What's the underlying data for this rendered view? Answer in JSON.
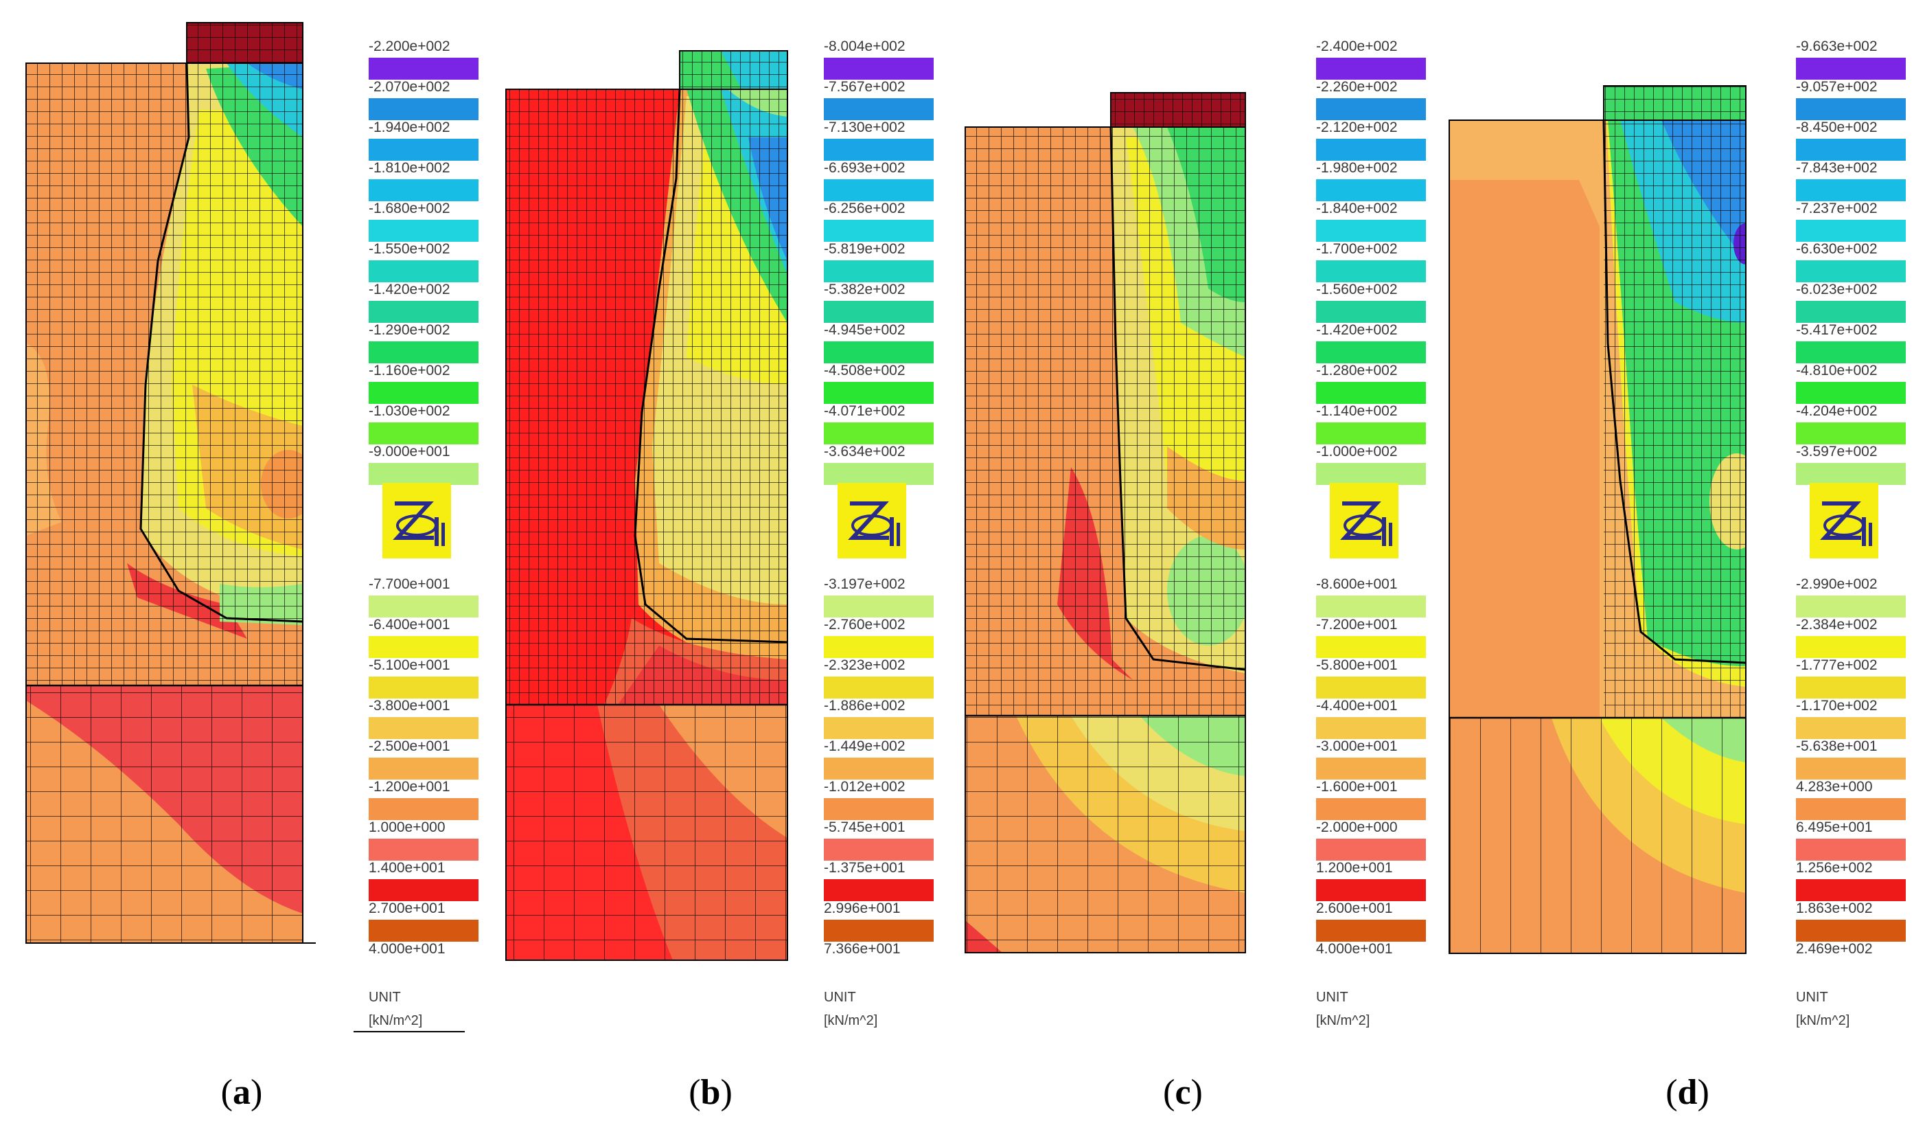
{
  "panels": [
    {
      "id": "a",
      "label_open": "(",
      "label_letter": "a",
      "label_close": ")",
      "ticks_top": [
        "-2.200e+002",
        "-2.070e+002",
        "-1.940e+002",
        "-1.810e+002",
        "-1.680e+002",
        "-1.550e+002",
        "-1.420e+002",
        "-1.290e+002",
        "-1.160e+002",
        "-1.030e+002",
        "-9.000e+001"
      ],
      "ticks_bottom": [
        "-7.700e+001",
        "-6.400e+001",
        "-5.100e+001",
        "-3.800e+001",
        "-2.500e+001",
        "-1.200e+001",
        "1.000e+000",
        "1.400e+001",
        "2.700e+001",
        "4.000e+001"
      ],
      "unit_label": "UNIT",
      "unit_value": "[kN/m^2]"
    },
    {
      "id": "b",
      "label_open": "(",
      "label_letter": "b",
      "label_close": ")",
      "ticks_top": [
        "-8.004e+002",
        "-7.567e+002",
        "-7.130e+002",
        "-6.693e+002",
        "-6.256e+002",
        "-5.819e+002",
        "-5.382e+002",
        "-4.945e+002",
        "-4.508e+002",
        "-4.071e+002",
        "-3.634e+002"
      ],
      "ticks_bottom": [
        "-3.197e+002",
        "-2.760e+002",
        "-2.323e+002",
        "-1.886e+002",
        "-1.449e+002",
        "-1.012e+002",
        "-5.745e+001",
        "-1.375e+001",
        "2.996e+001",
        "7.366e+001"
      ],
      "unit_label": "UNIT",
      "unit_value": "[kN/m^2]"
    },
    {
      "id": "c",
      "label_open": "(",
      "label_letter": "c",
      "label_close": ")",
      "ticks_top": [
        "-2.400e+002",
        "-2.260e+002",
        "-2.120e+002",
        "-1.980e+002",
        "-1.840e+002",
        "-1.700e+002",
        "-1.560e+002",
        "-1.420e+002",
        "-1.280e+002",
        "-1.140e+002",
        "-1.000e+002"
      ],
      "ticks_bottom": [
        "-8.600e+001",
        "-7.200e+001",
        "-5.800e+001",
        "-4.400e+001",
        "-3.000e+001",
        "-1.600e+001",
        "-2.000e+000",
        "1.200e+001",
        "2.600e+001",
        "4.000e+001"
      ],
      "unit_label": "UNIT",
      "unit_value": "[kN/m^2]"
    },
    {
      "id": "d",
      "label_open": "(",
      "label_letter": "d",
      "label_close": ")",
      "ticks_top": [
        "-9.663e+002",
        "-9.057e+002",
        "-8.450e+002",
        "-7.843e+002",
        "-7.237e+002",
        "-6.630e+002",
        "-6.023e+002",
        "-5.417e+002",
        "-4.810e+002",
        "-4.204e+002",
        "-3.597e+002"
      ],
      "ticks_bottom": [
        "-2.990e+002",
        "-2.384e+002",
        "-1.777e+002",
        "-1.170e+002",
        "-5.638e+001",
        "4.283e+000",
        "6.495e+001",
        "1.256e+002",
        "1.863e+002",
        "2.469e+002"
      ],
      "unit_label": "UNIT",
      "unit_value": "[kN/m^2]"
    }
  ],
  "legend_colors": [
    "#7a25e6",
    "#1f8fe0",
    "#1aa6e6",
    "#18bde6",
    "#1fd3df",
    "#1ed3c0",
    "#21d39a",
    "#1ed960",
    "#29e632",
    "#66ee2c",
    "#b0f07a",
    "#c8f07a",
    "#f2f21a",
    "#f0dd2a",
    "#f5c84a",
    "#f5ae4a",
    "#f59448",
    "#f56a5a",
    "#ee1a1a",
    "#d65810"
  ],
  "colors": {
    "orange": "#f59a52",
    "light_orange": "#f7b460",
    "red": "#ee3030",
    "bright_red": "#ff1f1f",
    "yellow": "#f2ee2a",
    "light_yellow": "#ece06a",
    "green": "#3ed866",
    "light_green": "#9ae87e",
    "cyan": "#27c8d8",
    "blue": "#2b8fe6",
    "purple": "#5b1fd0",
    "dark_red": "#9a1020",
    "grid": "#000000"
  },
  "chart_data": [
    {
      "type": "heatmap",
      "title": "(a)",
      "unit": "[kN/m^2]",
      "legend_levels": [
        -220,
        -207,
        -194,
        -181,
        -168,
        -155,
        -142,
        -129,
        -116,
        -103,
        -90,
        -77,
        -64,
        -51,
        -38,
        -25,
        -12,
        1,
        14,
        27,
        40
      ]
    },
    {
      "type": "heatmap",
      "title": "(b)",
      "unit": "[kN/m^2]",
      "legend_levels": [
        -800.4,
        -756.7,
        -713.0,
        -669.3,
        -625.6,
        -581.9,
        -538.2,
        -494.5,
        -450.8,
        -407.1,
        -363.4,
        -319.7,
        -276.0,
        -232.3,
        -188.6,
        -144.9,
        -101.2,
        -57.45,
        -13.75,
        29.96,
        73.66
      ]
    },
    {
      "type": "heatmap",
      "title": "(c)",
      "unit": "[kN/m^2]",
      "legend_levels": [
        -240,
        -226,
        -212,
        -198,
        -184,
        -170,
        -156,
        -142,
        -128,
        -114,
        -100,
        -86,
        -72,
        -58,
        -44,
        -30,
        -16,
        -2,
        12,
        26,
        40
      ]
    },
    {
      "type": "heatmap",
      "title": "(d)",
      "unit": "[kN/m^2]",
      "legend_levels": [
        -966.3,
        -905.7,
        -845.0,
        -784.3,
        -723.7,
        -663.0,
        -602.3,
        -541.7,
        -481.0,
        -420.4,
        -359.7,
        -299.0,
        -238.4,
        -177.7,
        -117.0,
        -56.38,
        4.283,
        64.95,
        125.6,
        186.3,
        246.9
      ]
    }
  ]
}
